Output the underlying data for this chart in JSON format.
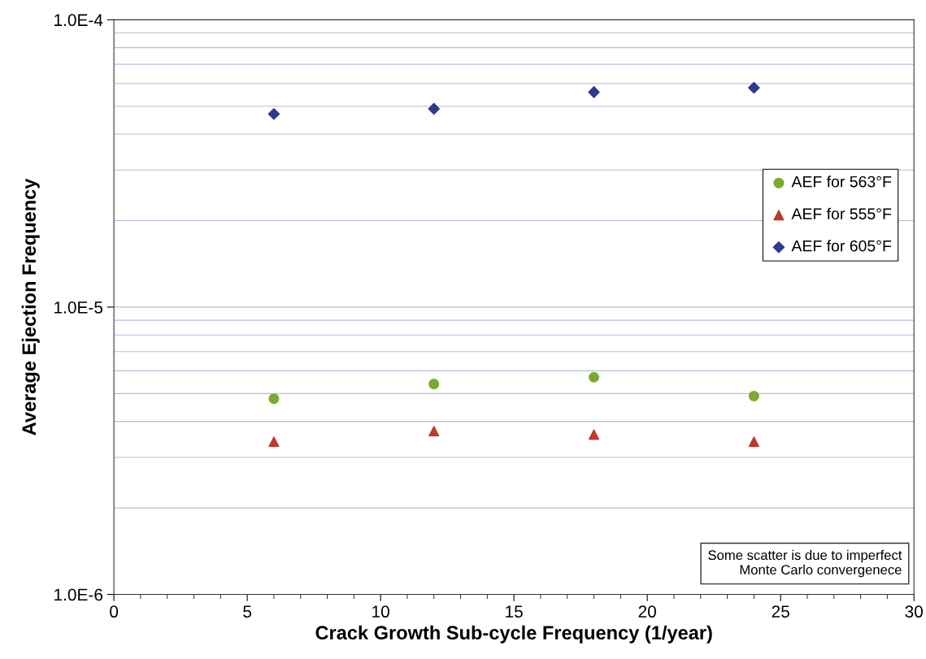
{
  "chart_data": {
    "type": "scatter",
    "xlabel": "Crack Growth Sub-cycle Frequency (1/year)",
    "ylabel": "Average Ejection Frequency",
    "x": [
      6,
      12,
      18,
      24
    ],
    "series": [
      {
        "name": "AEF for 563°F",
        "color": "#7aab2e",
        "marker": "circle",
        "values": [
          4.8e-06,
          5.4e-06,
          5.7e-06,
          4.9e-06
        ]
      },
      {
        "name": "AEF for 555°F",
        "color": "#c0392b",
        "marker": "triangle",
        "values": [
          3.4e-06,
          3.7e-06,
          3.6e-06,
          3.4e-06
        ]
      },
      {
        "name": "AEF for 605°F",
        "color": "#2e3a8c",
        "marker": "diamond",
        "values": [
          4.7e-05,
          4.9e-05,
          5.6e-05,
          5.8e-05
        ]
      }
    ],
    "log": "y",
    "xlim": [
      0,
      30
    ],
    "xticks": [
      0,
      5,
      10,
      15,
      20,
      25,
      30
    ],
    "ylim": [
      1e-06,
      0.0001
    ],
    "yticks": [
      {
        "value": 1e-06,
        "label": "1.0E-6"
      },
      {
        "value": 1e-05,
        "label": "1.0E-5"
      },
      {
        "value": 0.0001,
        "label": "1.0E-4"
      }
    ],
    "grid": "y",
    "legend": "right",
    "annotations": [
      "Some scatter is due to imperfect\nMonte Carlo convergenece"
    ]
  }
}
